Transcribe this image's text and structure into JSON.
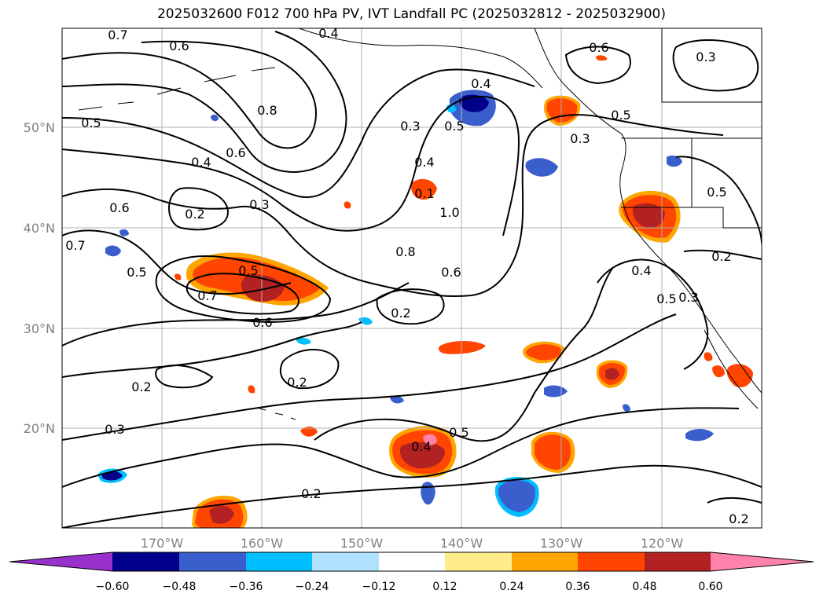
{
  "title": "2025032600 F012 700 hPa PV, IVT Landfall PC (2025032812 - 2025032900)",
  "lon_ticks": [
    "170°W",
    "160°W",
    "150°W",
    "140°W",
    "130°W",
    "120°W"
  ],
  "lat_ticks": [
    "50°N",
    "40°N",
    "30°N",
    "20°N"
  ],
  "contour_labels": [
    "0.7",
    "0.6",
    "0.4",
    "0.8",
    "0.5",
    "0.6",
    "0.4",
    "0.6",
    "0.7",
    "0.5",
    "0.2",
    "0.3",
    "0.5",
    "0.7",
    "0.6",
    "0.2",
    "0.2",
    "0.3",
    "0.3",
    "0.5",
    "0.4",
    "0.1",
    "1.0",
    "0.8",
    "0.6",
    "0.2",
    "0.5",
    "0.4",
    "0.2",
    "0.6",
    "0.3",
    "0.4",
    "0.5",
    "0.3",
    "0.5",
    "0.2",
    "0.4",
    "0.5",
    "0.3",
    "0.2"
  ],
  "colorbar": {
    "ticks": [
      "−0.60",
      "−0.48",
      "−0.36",
      "−0.24",
      "−0.12",
      "0.12",
      "0.24",
      "0.36",
      "0.48",
      "0.60"
    ],
    "colors": [
      "#9932cc",
      "#00008b",
      "#3a5fcd",
      "#00bfff",
      "#b0e2ff",
      "#ffffff",
      "#ffec8b",
      "#ffa500",
      "#ff4500",
      "#b22222",
      "#ff82ab"
    ]
  }
}
